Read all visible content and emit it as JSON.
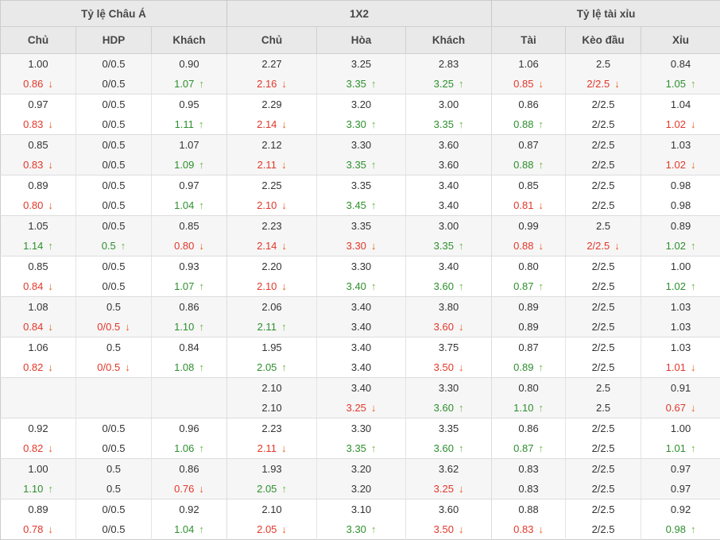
{
  "colors": {
    "header_bg": "#e9e9e9",
    "red": "#e2372a",
    "red_arrow": "#ec5a1b",
    "green": "#2d8f2d",
    "green_arrow": "#6cb543",
    "alt_row_bg": "#f6f6f6"
  },
  "table": {
    "header_groups": [
      {
        "label": "Tỷ lệ Châu Á"
      },
      {
        "label": "1X2"
      },
      {
        "label": "Tỷ lệ tài xỉu"
      }
    ],
    "columns": [
      "Chủ",
      "HDP",
      "Khách",
      "Chủ",
      "Hòa",
      "Khách",
      "Tài",
      "Kèo đầu",
      "Xỉu"
    ],
    "groups": [
      [
        [
          [
            "1.00",
            "black",
            ""
          ],
          [
            "0/0.5",
            "black",
            ""
          ],
          [
            "0.90",
            "black",
            ""
          ],
          [
            "2.27",
            "black",
            ""
          ],
          [
            "3.25",
            "black",
            ""
          ],
          [
            "2.83",
            "black",
            ""
          ],
          [
            "1.06",
            "black",
            ""
          ],
          [
            "2.5",
            "black",
            ""
          ],
          [
            "0.84",
            "black",
            ""
          ]
        ],
        [
          [
            "0.86",
            "red",
            "down"
          ],
          [
            "0/0.5",
            "black",
            ""
          ],
          [
            "1.07",
            "green",
            "up"
          ],
          [
            "2.16",
            "red",
            "down"
          ],
          [
            "3.35",
            "green",
            "up"
          ],
          [
            "3.25",
            "green",
            "up"
          ],
          [
            "0.85",
            "red",
            "down"
          ],
          [
            "2/2.5",
            "red",
            "down"
          ],
          [
            "1.05",
            "green",
            "up"
          ]
        ]
      ],
      [
        [
          [
            "0.97",
            "black",
            ""
          ],
          [
            "0/0.5",
            "black",
            ""
          ],
          [
            "0.95",
            "black",
            ""
          ],
          [
            "2.29",
            "black",
            ""
          ],
          [
            "3.20",
            "black",
            ""
          ],
          [
            "3.00",
            "black",
            ""
          ],
          [
            "0.86",
            "black",
            ""
          ],
          [
            "2/2.5",
            "black",
            ""
          ],
          [
            "1.04",
            "black",
            ""
          ]
        ],
        [
          [
            "0.83",
            "red",
            "down"
          ],
          [
            "0/0.5",
            "black",
            ""
          ],
          [
            "1.11",
            "green",
            "up"
          ],
          [
            "2.14",
            "red",
            "down"
          ],
          [
            "3.30",
            "green",
            "up"
          ],
          [
            "3.35",
            "green",
            "up"
          ],
          [
            "0.88",
            "green",
            "up"
          ],
          [
            "2/2.5",
            "black",
            ""
          ],
          [
            "1.02",
            "red",
            "down"
          ]
        ]
      ],
      [
        [
          [
            "0.85",
            "black",
            ""
          ],
          [
            "0/0.5",
            "black",
            ""
          ],
          [
            "1.07",
            "black",
            ""
          ],
          [
            "2.12",
            "black",
            ""
          ],
          [
            "3.30",
            "black",
            ""
          ],
          [
            "3.60",
            "black",
            ""
          ],
          [
            "0.87",
            "black",
            ""
          ],
          [
            "2/2.5",
            "black",
            ""
          ],
          [
            "1.03",
            "black",
            ""
          ]
        ],
        [
          [
            "0.83",
            "red",
            "down"
          ],
          [
            "0/0.5",
            "black",
            ""
          ],
          [
            "1.09",
            "green",
            "up"
          ],
          [
            "2.11",
            "red",
            "down"
          ],
          [
            "3.35",
            "green",
            "up"
          ],
          [
            "3.60",
            "black",
            ""
          ],
          [
            "0.88",
            "green",
            "up"
          ],
          [
            "2/2.5",
            "black",
            ""
          ],
          [
            "1.02",
            "red",
            "down"
          ]
        ]
      ],
      [
        [
          [
            "0.89",
            "black",
            ""
          ],
          [
            "0/0.5",
            "black",
            ""
          ],
          [
            "0.97",
            "black",
            ""
          ],
          [
            "2.25",
            "black",
            ""
          ],
          [
            "3.35",
            "black",
            ""
          ],
          [
            "3.40",
            "black",
            ""
          ],
          [
            "0.85",
            "black",
            ""
          ],
          [
            "2/2.5",
            "black",
            ""
          ],
          [
            "0.98",
            "black",
            ""
          ]
        ],
        [
          [
            "0.80",
            "red",
            "down"
          ],
          [
            "0/0.5",
            "black",
            ""
          ],
          [
            "1.04",
            "green",
            "up"
          ],
          [
            "2.10",
            "red",
            "down"
          ],
          [
            "3.45",
            "green",
            "up"
          ],
          [
            "3.40",
            "black",
            ""
          ],
          [
            "0.81",
            "red",
            "down"
          ],
          [
            "2/2.5",
            "black",
            ""
          ],
          [
            "0.98",
            "black",
            ""
          ]
        ]
      ],
      [
        [
          [
            "1.05",
            "black",
            ""
          ],
          [
            "0/0.5",
            "black",
            ""
          ],
          [
            "0.85",
            "black",
            ""
          ],
          [
            "2.23",
            "black",
            ""
          ],
          [
            "3.35",
            "black",
            ""
          ],
          [
            "3.00",
            "black",
            ""
          ],
          [
            "0.99",
            "black",
            ""
          ],
          [
            "2.5",
            "black",
            ""
          ],
          [
            "0.89",
            "black",
            ""
          ]
        ],
        [
          [
            "1.14",
            "green",
            "up"
          ],
          [
            "0.5",
            "green",
            "up"
          ],
          [
            "0.80",
            "red",
            "down"
          ],
          [
            "2.14",
            "red",
            "down"
          ],
          [
            "3.30",
            "red",
            "down"
          ],
          [
            "3.35",
            "green",
            "up"
          ],
          [
            "0.88",
            "red",
            "down"
          ],
          [
            "2/2.5",
            "red",
            "down"
          ],
          [
            "1.02",
            "green",
            "up"
          ]
        ]
      ],
      [
        [
          [
            "0.85",
            "black",
            ""
          ],
          [
            "0/0.5",
            "black",
            ""
          ],
          [
            "0.93",
            "black",
            ""
          ],
          [
            "2.20",
            "black",
            ""
          ],
          [
            "3.30",
            "black",
            ""
          ],
          [
            "3.40",
            "black",
            ""
          ],
          [
            "0.80",
            "black",
            ""
          ],
          [
            "2/2.5",
            "black",
            ""
          ],
          [
            "1.00",
            "black",
            ""
          ]
        ],
        [
          [
            "0.84",
            "red",
            "down"
          ],
          [
            "0/0.5",
            "black",
            ""
          ],
          [
            "1.07",
            "green",
            "up"
          ],
          [
            "2.10",
            "red",
            "down"
          ],
          [
            "3.40",
            "green",
            "up"
          ],
          [
            "3.60",
            "green",
            "up"
          ],
          [
            "0.87",
            "green",
            "up"
          ],
          [
            "2/2.5",
            "black",
            ""
          ],
          [
            "1.02",
            "green",
            "up"
          ]
        ]
      ],
      [
        [
          [
            "1.08",
            "black",
            ""
          ],
          [
            "0.5",
            "black",
            ""
          ],
          [
            "0.86",
            "black",
            ""
          ],
          [
            "2.06",
            "black",
            ""
          ],
          [
            "3.40",
            "black",
            ""
          ],
          [
            "3.80",
            "black",
            ""
          ],
          [
            "0.89",
            "black",
            ""
          ],
          [
            "2/2.5",
            "black",
            ""
          ],
          [
            "1.03",
            "black",
            ""
          ]
        ],
        [
          [
            "0.84",
            "red",
            "down"
          ],
          [
            "0/0.5",
            "red",
            "down"
          ],
          [
            "1.10",
            "green",
            "up"
          ],
          [
            "2.11",
            "green",
            "up"
          ],
          [
            "3.40",
            "black",
            ""
          ],
          [
            "3.60",
            "red",
            "down"
          ],
          [
            "0.89",
            "black",
            ""
          ],
          [
            "2/2.5",
            "black",
            ""
          ],
          [
            "1.03",
            "black",
            ""
          ]
        ]
      ],
      [
        [
          [
            "1.06",
            "black",
            ""
          ],
          [
            "0.5",
            "black",
            ""
          ],
          [
            "0.84",
            "black",
            ""
          ],
          [
            "1.95",
            "black",
            ""
          ],
          [
            "3.40",
            "black",
            ""
          ],
          [
            "3.75",
            "black",
            ""
          ],
          [
            "0.87",
            "black",
            ""
          ],
          [
            "2/2.5",
            "black",
            ""
          ],
          [
            "1.03",
            "black",
            ""
          ]
        ],
        [
          [
            "0.82",
            "red",
            "down"
          ],
          [
            "0/0.5",
            "red",
            "down"
          ],
          [
            "1.08",
            "green",
            "up"
          ],
          [
            "2.05",
            "green",
            "up"
          ],
          [
            "3.40",
            "black",
            ""
          ],
          [
            "3.50",
            "red",
            "down"
          ],
          [
            "0.89",
            "green",
            "up"
          ],
          [
            "2/2.5",
            "black",
            ""
          ],
          [
            "1.01",
            "red",
            "down"
          ]
        ]
      ],
      [
        [
          [
            "",
            "black",
            ""
          ],
          [
            "",
            "black",
            ""
          ],
          [
            "",
            "black",
            ""
          ],
          [
            "2.10",
            "black",
            ""
          ],
          [
            "3.40",
            "black",
            ""
          ],
          [
            "3.30",
            "black",
            ""
          ],
          [
            "0.80",
            "black",
            ""
          ],
          [
            "2.5",
            "black",
            ""
          ],
          [
            "0.91",
            "black",
            ""
          ]
        ],
        [
          [
            "",
            "black",
            ""
          ],
          [
            "",
            "black",
            ""
          ],
          [
            "",
            "black",
            ""
          ],
          [
            "2.10",
            "black",
            ""
          ],
          [
            "3.25",
            "red",
            "down"
          ],
          [
            "3.60",
            "green",
            "up"
          ],
          [
            "1.10",
            "green",
            "up"
          ],
          [
            "2.5",
            "black",
            ""
          ],
          [
            "0.67",
            "red",
            "down"
          ]
        ]
      ],
      [
        [
          [
            "0.92",
            "black",
            ""
          ],
          [
            "0/0.5",
            "black",
            ""
          ],
          [
            "0.96",
            "black",
            ""
          ],
          [
            "2.23",
            "black",
            ""
          ],
          [
            "3.30",
            "black",
            ""
          ],
          [
            "3.35",
            "black",
            ""
          ],
          [
            "0.86",
            "black",
            ""
          ],
          [
            "2/2.5",
            "black",
            ""
          ],
          [
            "1.00",
            "black",
            ""
          ]
        ],
        [
          [
            "0.82",
            "red",
            "down"
          ],
          [
            "0/0.5",
            "black",
            ""
          ],
          [
            "1.06",
            "green",
            "up"
          ],
          [
            "2.11",
            "red",
            "down"
          ],
          [
            "3.35",
            "green",
            "up"
          ],
          [
            "3.60",
            "green",
            "up"
          ],
          [
            "0.87",
            "green",
            "up"
          ],
          [
            "2/2.5",
            "black",
            ""
          ],
          [
            "1.01",
            "green",
            "up"
          ]
        ]
      ],
      [
        [
          [
            "1.00",
            "black",
            ""
          ],
          [
            "0.5",
            "black",
            ""
          ],
          [
            "0.86",
            "black",
            ""
          ],
          [
            "1.93",
            "black",
            ""
          ],
          [
            "3.20",
            "black",
            ""
          ],
          [
            "3.62",
            "black",
            ""
          ],
          [
            "0.83",
            "black",
            ""
          ],
          [
            "2/2.5",
            "black",
            ""
          ],
          [
            "0.97",
            "black",
            ""
          ]
        ],
        [
          [
            "1.10",
            "green",
            "up"
          ],
          [
            "0.5",
            "black",
            ""
          ],
          [
            "0.76",
            "red",
            "down"
          ],
          [
            "2.05",
            "green",
            "up"
          ],
          [
            "3.20",
            "black",
            ""
          ],
          [
            "3.25",
            "red",
            "down"
          ],
          [
            "0.83",
            "black",
            ""
          ],
          [
            "2/2.5",
            "black",
            ""
          ],
          [
            "0.97",
            "black",
            ""
          ]
        ]
      ],
      [
        [
          [
            "0.89",
            "black",
            ""
          ],
          [
            "0/0.5",
            "black",
            ""
          ],
          [
            "0.92",
            "black",
            ""
          ],
          [
            "2.10",
            "black",
            ""
          ],
          [
            "3.10",
            "black",
            ""
          ],
          [
            "3.60",
            "black",
            ""
          ],
          [
            "0.88",
            "black",
            ""
          ],
          [
            "2/2.5",
            "black",
            ""
          ],
          [
            "0.92",
            "black",
            ""
          ]
        ],
        [
          [
            "0.78",
            "red",
            "down"
          ],
          [
            "0/0.5",
            "black",
            ""
          ],
          [
            "1.04",
            "green",
            "up"
          ],
          [
            "2.05",
            "red",
            "down"
          ],
          [
            "3.30",
            "green",
            "up"
          ],
          [
            "3.50",
            "red",
            "down"
          ],
          [
            "0.83",
            "red",
            "down"
          ],
          [
            "2/2.5",
            "black",
            ""
          ],
          [
            "0.98",
            "green",
            "up"
          ]
        ]
      ]
    ]
  }
}
